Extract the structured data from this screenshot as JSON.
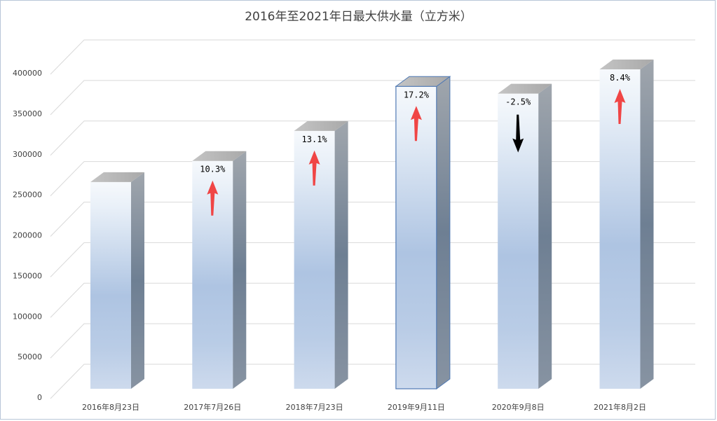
{
  "chart_data": {
    "type": "bar",
    "title": "2016年至2021年日最大供水量（立方米）",
    "categories": [
      "2016年8月23日",
      "2017年7月26日",
      "2018年7月23日",
      "2019年9月11日",
      "2020年9月8日",
      "2021年8月2日"
    ],
    "values": [
      255000,
      281000,
      318000,
      373000,
      364000,
      394000
    ],
    "change_labels": [
      "",
      "10.3%",
      "13.1%",
      "17.2%",
      "-2.5%",
      "8.4%"
    ],
    "change_direction": [
      "none",
      "up",
      "up",
      "up",
      "down",
      "up"
    ],
    "ylim": [
      0,
      400000
    ],
    "yticks": [
      0,
      50000,
      100000,
      150000,
      200000,
      250000,
      300000,
      350000,
      400000
    ],
    "grid": true,
    "legend": "none",
    "highlighted_category": "2019年9月11日",
    "colors": {
      "bar_front_light": "#f4f7fb",
      "bar_front_mid": "#aec4e2",
      "bar_front_bottom": "#c9d7ec",
      "bar_side": "#6f8094",
      "bar_top": "#b8b8b8",
      "highlight_outline": "#4f79b4",
      "arrow_up": "#f04545",
      "arrow_down": "#000000",
      "grid": "#d9d9d9"
    }
  }
}
